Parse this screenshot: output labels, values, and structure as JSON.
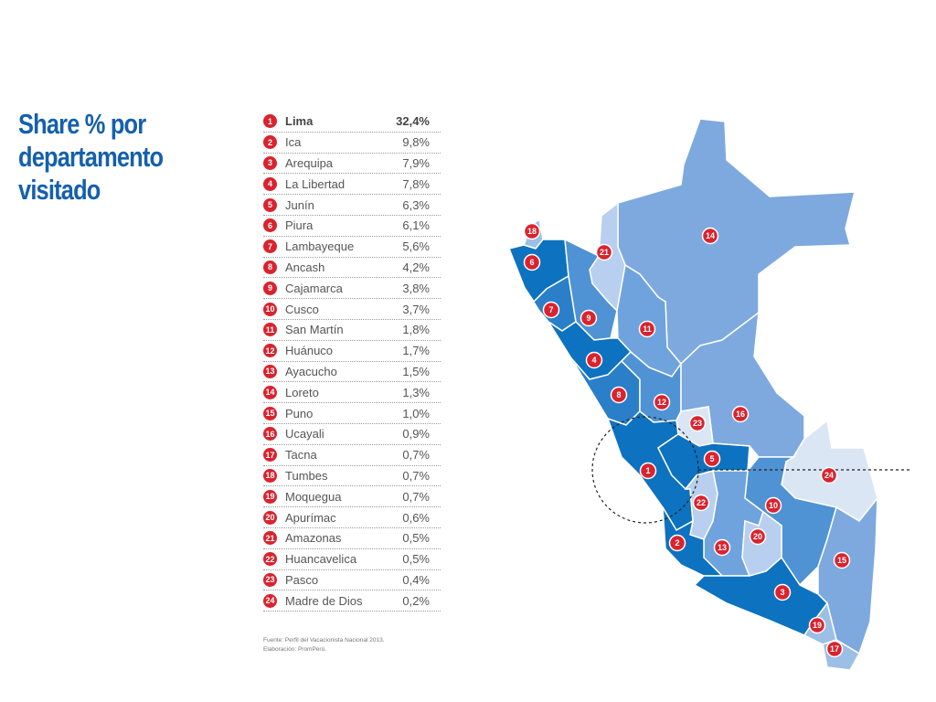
{
  "title": [
    "Share % por",
    "departamento",
    "visitado"
  ],
  "rows": [
    {
      "n": "1",
      "name": "Lima",
      "value": "32,4%"
    },
    {
      "n": "2",
      "name": "Ica",
      "value": "9,8%"
    },
    {
      "n": "3",
      "name": "Arequipa",
      "value": "7,9%"
    },
    {
      "n": "4",
      "name": "La Libertad",
      "value": "7,8%"
    },
    {
      "n": "5",
      "name": "Junín",
      "value": "6,3%"
    },
    {
      "n": "6",
      "name": "Piura",
      "value": "6,1%"
    },
    {
      "n": "7",
      "name": "Lambayeque",
      "value": "5,6%"
    },
    {
      "n": "8",
      "name": "Ancash",
      "value": "4,2%"
    },
    {
      "n": "9",
      "name": "Cajamarca",
      "value": "3,8%"
    },
    {
      "n": "10",
      "name": "Cusco",
      "value": "3,7%"
    },
    {
      "n": "11",
      "name": "San Martín",
      "value": "1,8%"
    },
    {
      "n": "12",
      "name": "Huánuco",
      "value": "1,7%"
    },
    {
      "n": "13",
      "name": "Ayacucho",
      "value": "1,5%"
    },
    {
      "n": "14",
      "name": "Loreto",
      "value": "1,3%"
    },
    {
      "n": "15",
      "name": "Puno",
      "value": "1,0%"
    },
    {
      "n": "16",
      "name": "Ucayali",
      "value": "0,9%"
    },
    {
      "n": "17",
      "name": "Tacna",
      "value": "0,7%"
    },
    {
      "n": "18",
      "name": "Tumbes",
      "value": "0,7%"
    },
    {
      "n": "19",
      "name": "Moquegua",
      "value": "0,7%"
    },
    {
      "n": "20",
      "name": "Apurímac",
      "value": "0,6%"
    },
    {
      "n": "21",
      "name": "Amazonas",
      "value": "0,5%"
    },
    {
      "n": "22",
      "name": "Huancavelica",
      "value": "0,5%"
    },
    {
      "n": "23",
      "name": "Pasco",
      "value": "0,4%"
    },
    {
      "n": "24",
      "name": "Madre de Dios",
      "value": "0,2%"
    }
  ],
  "source": [
    "Fuente: Perfil del Vacacionista Nacional 2013.",
    "Elaboración: PromPerú."
  ],
  "colors": {
    "title": "#1560ad",
    "badge": "#d9232e",
    "shade_1": "#0d72bf",
    "shade_2": "#3f8fd1",
    "shade_3": "#6fa3dd",
    "shade_4": "#9cbfe6",
    "shade_5": "#dbe6f5"
  }
}
